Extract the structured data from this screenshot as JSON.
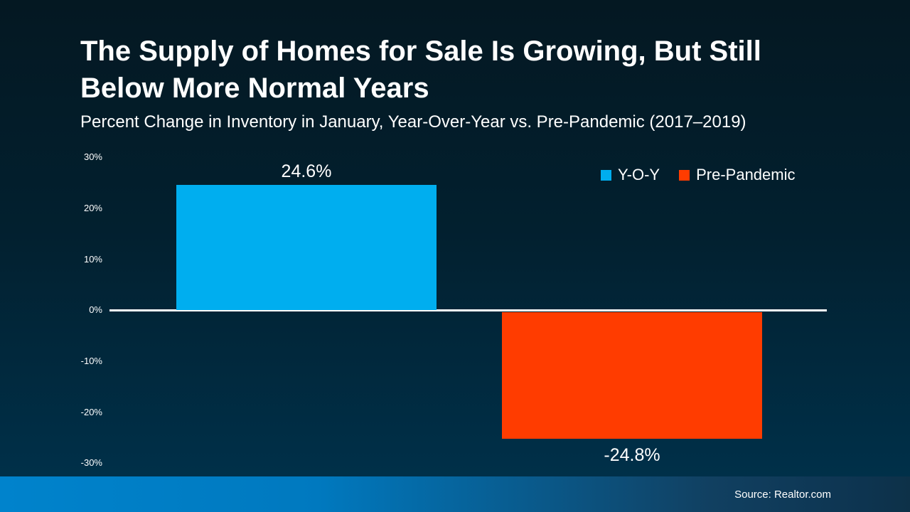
{
  "header": {
    "title_line1": "The Supply of Homes for Sale Is Growing, But Still",
    "title_line2": "Below More Normal Years",
    "subtitle": "Percent Change in Inventory in January, Year-Over-Year vs. Pre-Pandemic (2017–2019)"
  },
  "chart_data": {
    "type": "bar",
    "title": "The Supply of Homes for Sale Is Growing, But Still Below More Normal Years",
    "subtitle": "Percent Change in Inventory in January, Year-Over-Year vs. Pre-Pandemic (2017–2019)",
    "categories": [
      "Y-O-Y",
      "Pre-Pandemic"
    ],
    "values": [
      24.6,
      -24.8
    ],
    "series": [
      {
        "name": "Y-O-Y",
        "value": 24.6,
        "label": "24.6%",
        "color": "#00AEEF"
      },
      {
        "name": "Pre-Pandemic",
        "value": -24.8,
        "label": "-24.8%",
        "color": "#FF3C00"
      }
    ],
    "xlabel": "",
    "ylabel": "",
    "ylim": [
      -30,
      30
    ],
    "ytick_interval": 10,
    "yticks": [
      "30%",
      "20%",
      "10%",
      "0%",
      "-10%",
      "-20%",
      "-30%"
    ],
    "grid": false,
    "zero_axis_line": true,
    "legend_position": "top-right"
  },
  "legend": {
    "items": [
      {
        "label": "Y-O-Y",
        "color": "#00AEEF"
      },
      {
        "label": "Pre-Pandemic",
        "color": "#FF3C00"
      }
    ]
  },
  "footer": {
    "source": "Source: Realtor.com"
  },
  "colors": {
    "background_top": "#041822",
    "background_bottom": "#003049",
    "text": "#FFFFFF",
    "axis_line": "#FFFFFF",
    "yoy_bar": "#00AEEF",
    "pre_pandemic_bar": "#FF3C00",
    "footer_left": "#0083CC",
    "footer_right": "#0D3148"
  }
}
